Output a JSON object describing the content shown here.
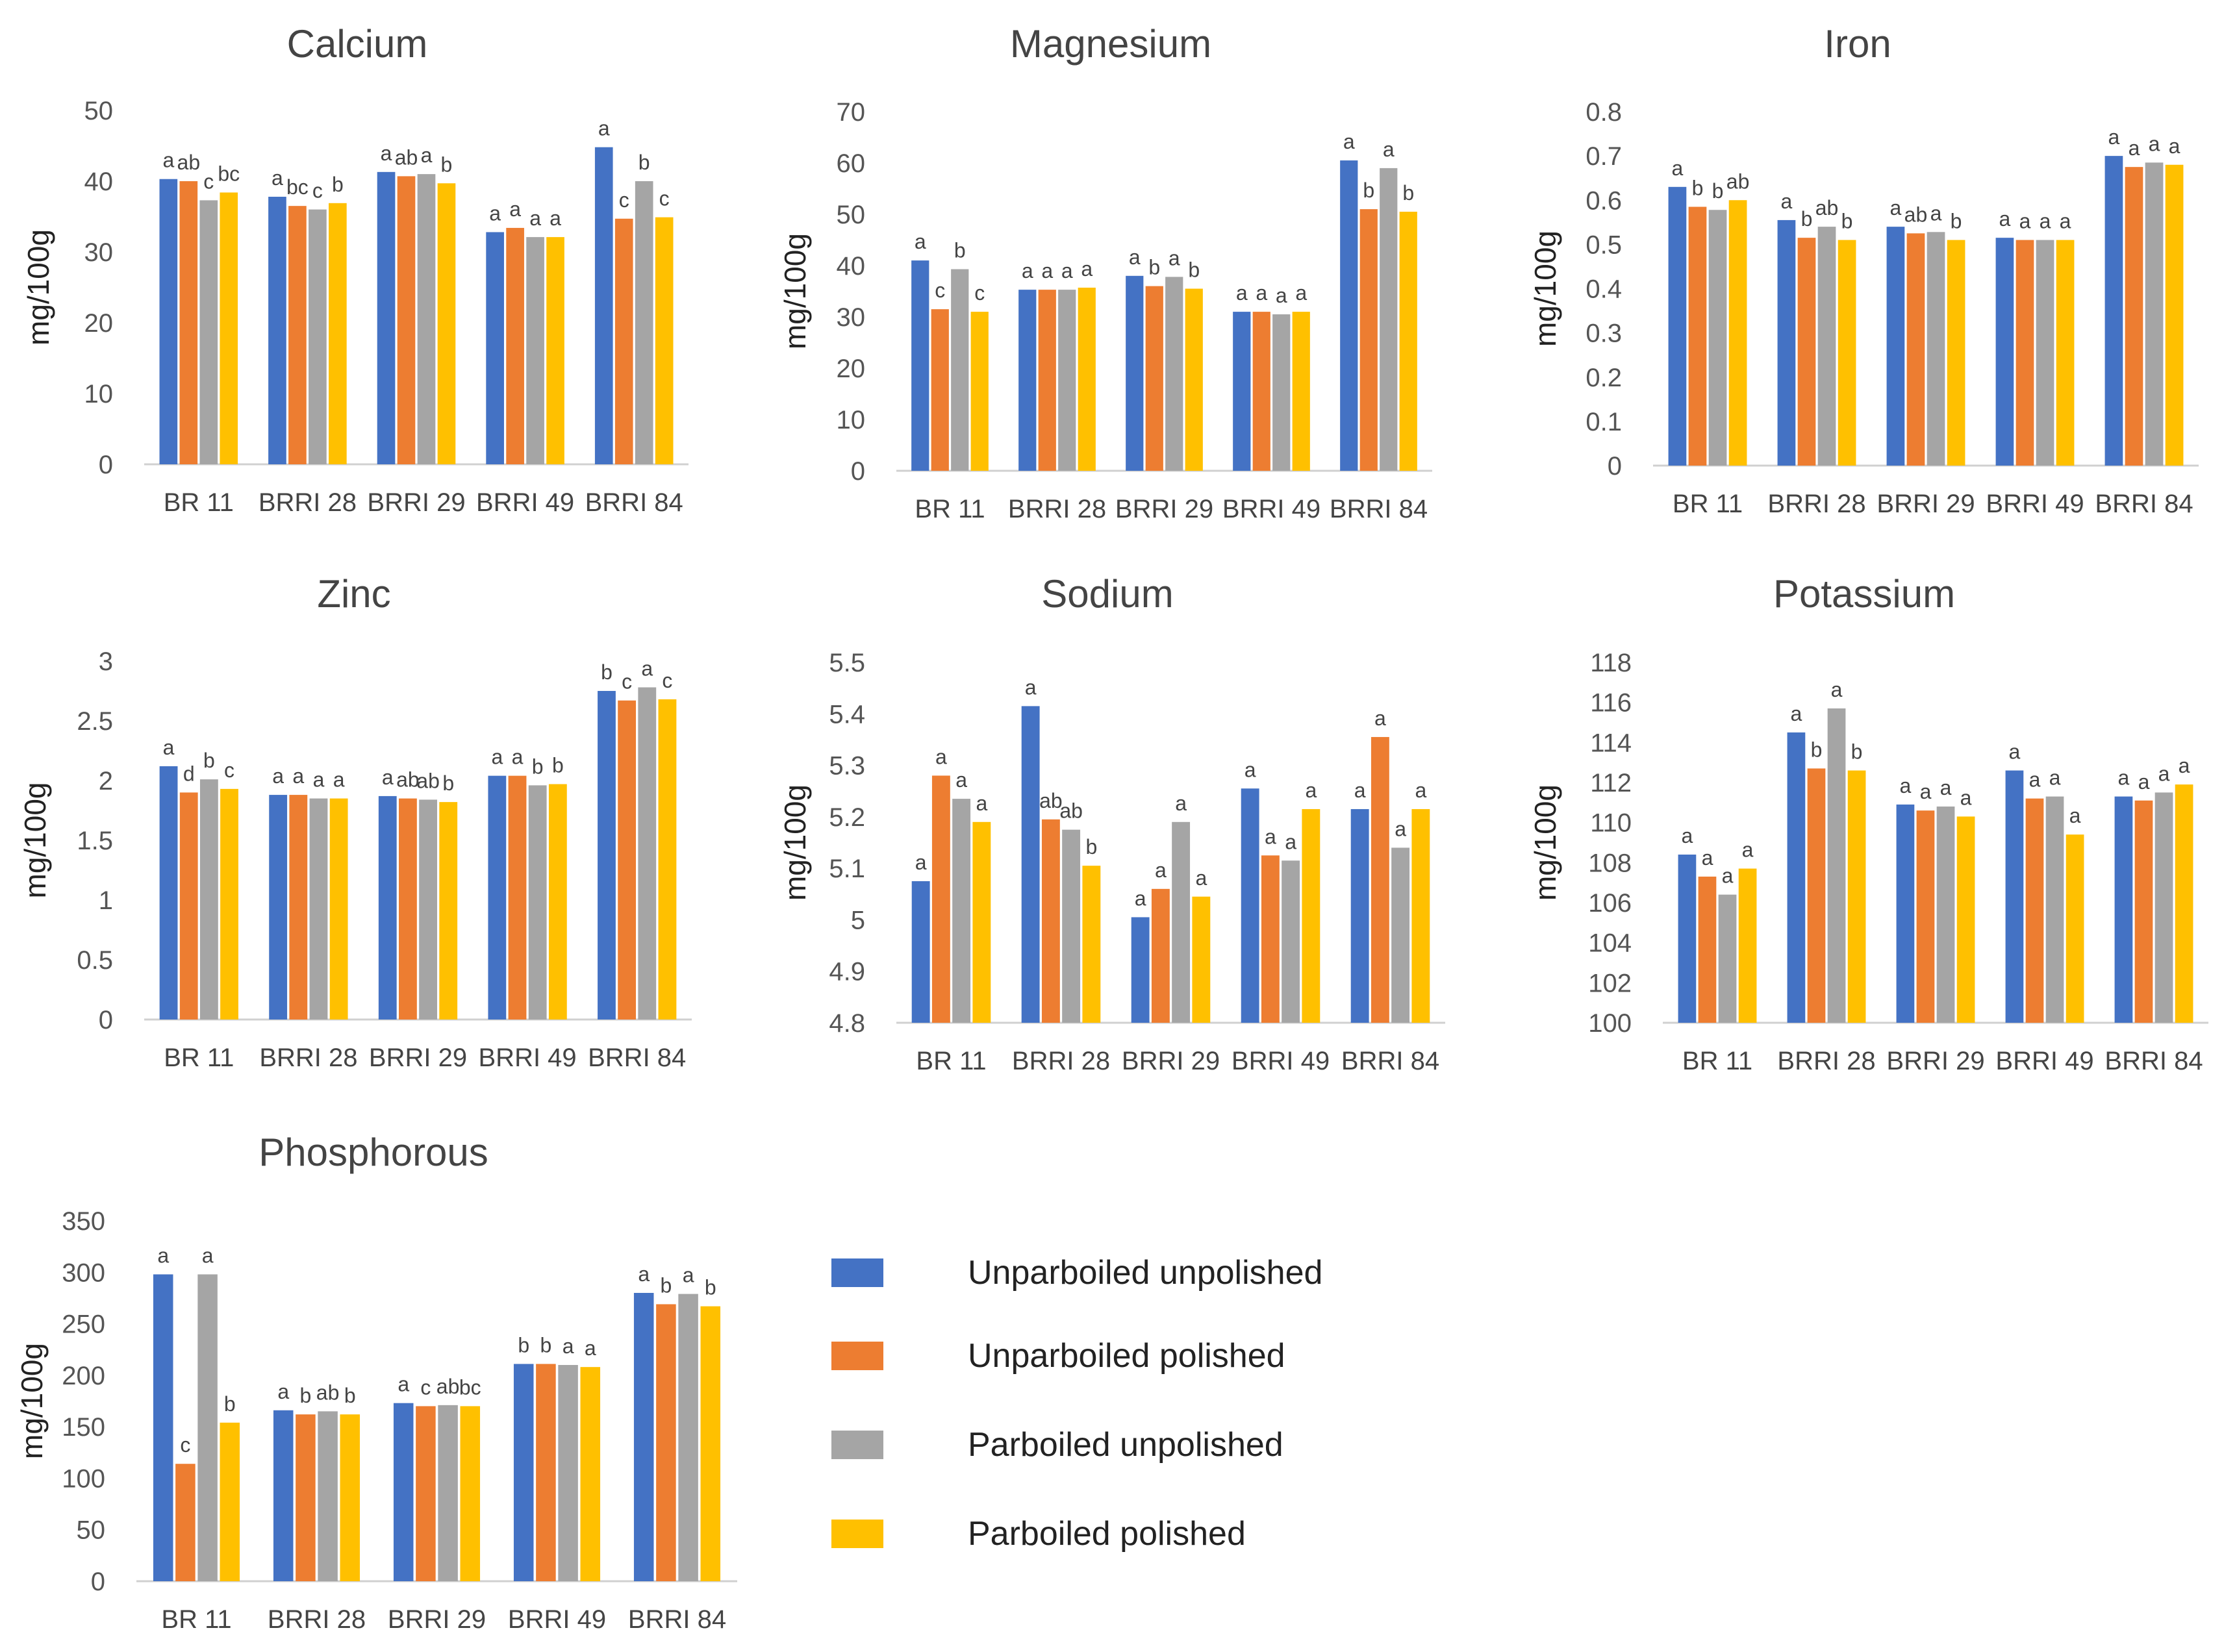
{
  "legend": [
    {
      "name": "Unparboiled unpolished",
      "color": "#4472C4"
    },
    {
      "name": "Unparboiled polished",
      "color": "#ED7D31"
    },
    {
      "name": "Parboiled unpolished",
      "color": "#A5A5A5"
    },
    {
      "name": "Parboiled polished",
      "color": "#FFC000"
    }
  ],
  "chart_data": [
    {
      "type": "bar",
      "title": "Calcium",
      "ylabel": "mg/100g",
      "xlabel": "",
      "categories": [
        "BR 11",
        "BRRI 28",
        "BRRI 29",
        "BRRI 49",
        "BRRI 84"
      ],
      "ylim": [
        0,
        50
      ],
      "yticks": [
        "0",
        "10",
        "20",
        "30",
        "40",
        "50"
      ],
      "grid": false,
      "series": [
        {
          "name": "Unparboiled unpolished",
          "values": [
            40.3,
            37.8,
            41.3,
            32.8,
            44.8
          ]
        },
        {
          "name": "Unparboiled polished",
          "values": [
            40.0,
            36.5,
            40.7,
            33.4,
            34.7
          ]
        },
        {
          "name": "Parboiled unpolished",
          "values": [
            37.3,
            36.0,
            41.0,
            32.1,
            40.0
          ]
        },
        {
          "name": "Parboiled polished",
          "values": [
            38.4,
            36.9,
            39.7,
            32.1,
            34.9
          ]
        }
      ],
      "letters": [
        [
          "a",
          "ab",
          "c",
          "bc"
        ],
        [
          "a",
          "bc",
          "c",
          "b"
        ],
        [
          "a",
          "ab",
          "a",
          "b"
        ],
        [
          "a",
          "a",
          "a",
          "a"
        ],
        [
          "a",
          "c",
          "b",
          "c"
        ]
      ]
    },
    {
      "type": "bar",
      "title": "Magnesium",
      "ylabel": "mg/100g",
      "xlabel": "",
      "categories": [
        "BR 11",
        "BRRI 28",
        "BRRI 29",
        "BRRI 49",
        "BRRI 84"
      ],
      "ylim": [
        0,
        70
      ],
      "yticks": [
        "0",
        "10",
        "20",
        "30",
        "40",
        "50",
        "60",
        "70"
      ],
      "grid": false,
      "series": [
        {
          "name": "Unparboiled unpolished",
          "values": [
            41.0,
            35.3,
            38.0,
            31.0,
            60.5
          ]
        },
        {
          "name": "Unparboiled polished",
          "values": [
            31.5,
            35.3,
            36.0,
            31.0,
            51.0
          ]
        },
        {
          "name": "Parboiled unpolished",
          "values": [
            39.3,
            35.3,
            37.8,
            30.5,
            59.0
          ]
        },
        {
          "name": "Parboiled polished",
          "values": [
            31.0,
            35.7,
            35.5,
            31.0,
            50.5
          ]
        }
      ],
      "letters": [
        [
          "a",
          "c",
          "b",
          "c"
        ],
        [
          "a",
          "a",
          "a",
          "a"
        ],
        [
          "a",
          "b",
          "a",
          "b"
        ],
        [
          "a",
          "a",
          "a",
          "a"
        ],
        [
          "a",
          "b",
          "a",
          "b"
        ]
      ]
    },
    {
      "type": "bar",
      "title": "Iron",
      "ylabel": "mg/100g",
      "xlabel": "",
      "categories": [
        "BR 11",
        "BRRI 28",
        "BRRI 29",
        "BRRI 49",
        "BRRI 84"
      ],
      "ylim": [
        0,
        0.8
      ],
      "yticks": [
        "0",
        "0.1",
        "0.2",
        "0.3",
        "0.4",
        "0.5",
        "0.6",
        "0.7",
        "0.8"
      ],
      "grid": false,
      "series": [
        {
          "name": "Unparboiled unpolished",
          "values": [
            0.63,
            0.555,
            0.54,
            0.515,
            0.7
          ]
        },
        {
          "name": "Unparboiled polished",
          "values": [
            0.585,
            0.515,
            0.525,
            0.51,
            0.675
          ]
        },
        {
          "name": "Parboiled unpolished",
          "values": [
            0.578,
            0.54,
            0.528,
            0.51,
            0.685
          ]
        },
        {
          "name": "Parboiled polished",
          "values": [
            0.6,
            0.51,
            0.51,
            0.51,
            0.68
          ]
        }
      ],
      "letters": [
        [
          "a",
          "b",
          "b",
          "ab"
        ],
        [
          "a",
          "b",
          "ab",
          "b"
        ],
        [
          "a",
          "ab",
          "a",
          "b"
        ],
        [
          "a",
          "a",
          "a",
          "a"
        ],
        [
          "a",
          "a",
          "a",
          "a"
        ]
      ]
    },
    {
      "type": "bar",
      "title": "Zinc",
      "ylabel": "mg/100g",
      "xlabel": "",
      "categories": [
        "BR 11",
        "BRRI 28",
        "BRRI 29",
        "BRRI 49",
        "BRRI 84"
      ],
      "ylim": [
        0,
        3
      ],
      "yticks": [
        "0",
        "0.5",
        "1",
        "1.5",
        "2",
        "2.5",
        "3"
      ],
      "grid": false,
      "series": [
        {
          "name": "Unparboiled unpolished",
          "values": [
            2.12,
            1.88,
            1.87,
            2.04,
            2.75
          ]
        },
        {
          "name": "Unparboiled polished",
          "values": [
            1.9,
            1.88,
            1.85,
            2.04,
            2.67
          ]
        },
        {
          "name": "Parboiled unpolished",
          "values": [
            2.01,
            1.85,
            1.84,
            1.96,
            2.78
          ]
        },
        {
          "name": "Parboiled polished",
          "values": [
            1.93,
            1.85,
            1.82,
            1.97,
            2.68
          ]
        }
      ],
      "letters": [
        [
          "a",
          "d",
          "b",
          "c"
        ],
        [
          "a",
          "a",
          "a",
          "a"
        ],
        [
          "a",
          "ab",
          "ab",
          "b"
        ],
        [
          "a",
          "a",
          "b",
          "b"
        ],
        [
          "b",
          "c",
          "a",
          "c"
        ]
      ]
    },
    {
      "type": "bar",
      "title": "Sodium",
      "ylabel": "mg/100g",
      "xlabel": "",
      "categories": [
        "BR 11",
        "BRRI 28",
        "BRRI 29",
        "BRRI 49",
        "BRRI 84"
      ],
      "ylim": [
        4.8,
        5.5
      ],
      "yticks": [
        "4.8",
        "4.9",
        "5",
        "5.1",
        "5.2",
        "5.3",
        "5.4",
        "5.5"
      ],
      "grid": false,
      "series": [
        {
          "name": "Unparboiled unpolished",
          "values": [
            5.075,
            5.415,
            5.005,
            5.255,
            5.215
          ]
        },
        {
          "name": "Unparboiled polished",
          "values": [
            5.28,
            5.195,
            5.06,
            5.125,
            5.355
          ]
        },
        {
          "name": "Parboiled unpolished",
          "values": [
            5.235,
            5.175,
            5.19,
            5.115,
            5.14
          ]
        },
        {
          "name": "Parboiled polished",
          "values": [
            5.19,
            5.105,
            5.045,
            5.215,
            5.215
          ]
        }
      ],
      "letters": [
        [
          "a",
          "a",
          "a",
          "a"
        ],
        [
          "a",
          "ab",
          "ab",
          "b"
        ],
        [
          "a",
          "a",
          "a",
          "a"
        ],
        [
          "a",
          "a",
          "a",
          "a"
        ],
        [
          "a",
          "a",
          "a",
          "a"
        ]
      ]
    },
    {
      "type": "bar",
      "title": "Potassium",
      "ylabel": "mg/100g",
      "xlabel": "",
      "categories": [
        "BR 11",
        "BRRI 28",
        "BRRI 29",
        "BRRI 49",
        "BRRI 84"
      ],
      "ylim": [
        100,
        118
      ],
      "yticks": [
        "100",
        "102",
        "104",
        "106",
        "108",
        "110",
        "112",
        "114",
        "116",
        "118"
      ],
      "grid": false,
      "series": [
        {
          "name": "Unparboiled unpolished",
          "values": [
            108.4,
            114.5,
            110.9,
            112.6,
            111.3
          ]
        },
        {
          "name": "Unparboiled polished",
          "values": [
            107.3,
            112.7,
            110.6,
            111.2,
            111.1
          ]
        },
        {
          "name": "Parboiled unpolished",
          "values": [
            106.4,
            115.7,
            110.8,
            111.3,
            111.5
          ]
        },
        {
          "name": "Parboiled polished",
          "values": [
            107.7,
            112.6,
            110.3,
            109.4,
            111.9
          ]
        }
      ],
      "letters": [
        [
          "a",
          "a",
          "a",
          "a"
        ],
        [
          "a",
          "b",
          "a",
          "b"
        ],
        [
          "a",
          "a",
          "a",
          "a"
        ],
        [
          "a",
          "a",
          "a",
          "a"
        ],
        [
          "a",
          "a",
          "a",
          "a"
        ]
      ]
    },
    {
      "type": "bar",
      "title": "Phosphorous",
      "ylabel": "mg/100g",
      "xlabel": "",
      "categories": [
        "BR 11",
        "BRRI 28",
        "BRRI 29",
        "BRRI 49",
        "BRRI 84"
      ],
      "ylim": [
        0,
        350
      ],
      "yticks": [
        "0",
        "50",
        "100",
        "150",
        "200",
        "250",
        "300",
        "350"
      ],
      "grid": false,
      "series": [
        {
          "name": "Unparboiled unpolished",
          "values": [
            298,
            166,
            173,
            211,
            280
          ]
        },
        {
          "name": "Unparboiled polished",
          "values": [
            114,
            162,
            170,
            211,
            269
          ]
        },
        {
          "name": "Parboiled unpolished",
          "values": [
            298,
            165,
            171,
            210,
            279
          ]
        },
        {
          "name": "Parboiled polished",
          "values": [
            154,
            162,
            170,
            208,
            267
          ]
        }
      ],
      "letters": [
        [
          "a",
          "c",
          "a",
          "b"
        ],
        [
          "a",
          "b",
          "ab",
          "b"
        ],
        [
          "a",
          "c",
          "ab",
          "bc"
        ],
        [
          "b",
          "b",
          "a",
          "a"
        ],
        [
          "a",
          "b",
          "a",
          "b"
        ]
      ]
    }
  ]
}
